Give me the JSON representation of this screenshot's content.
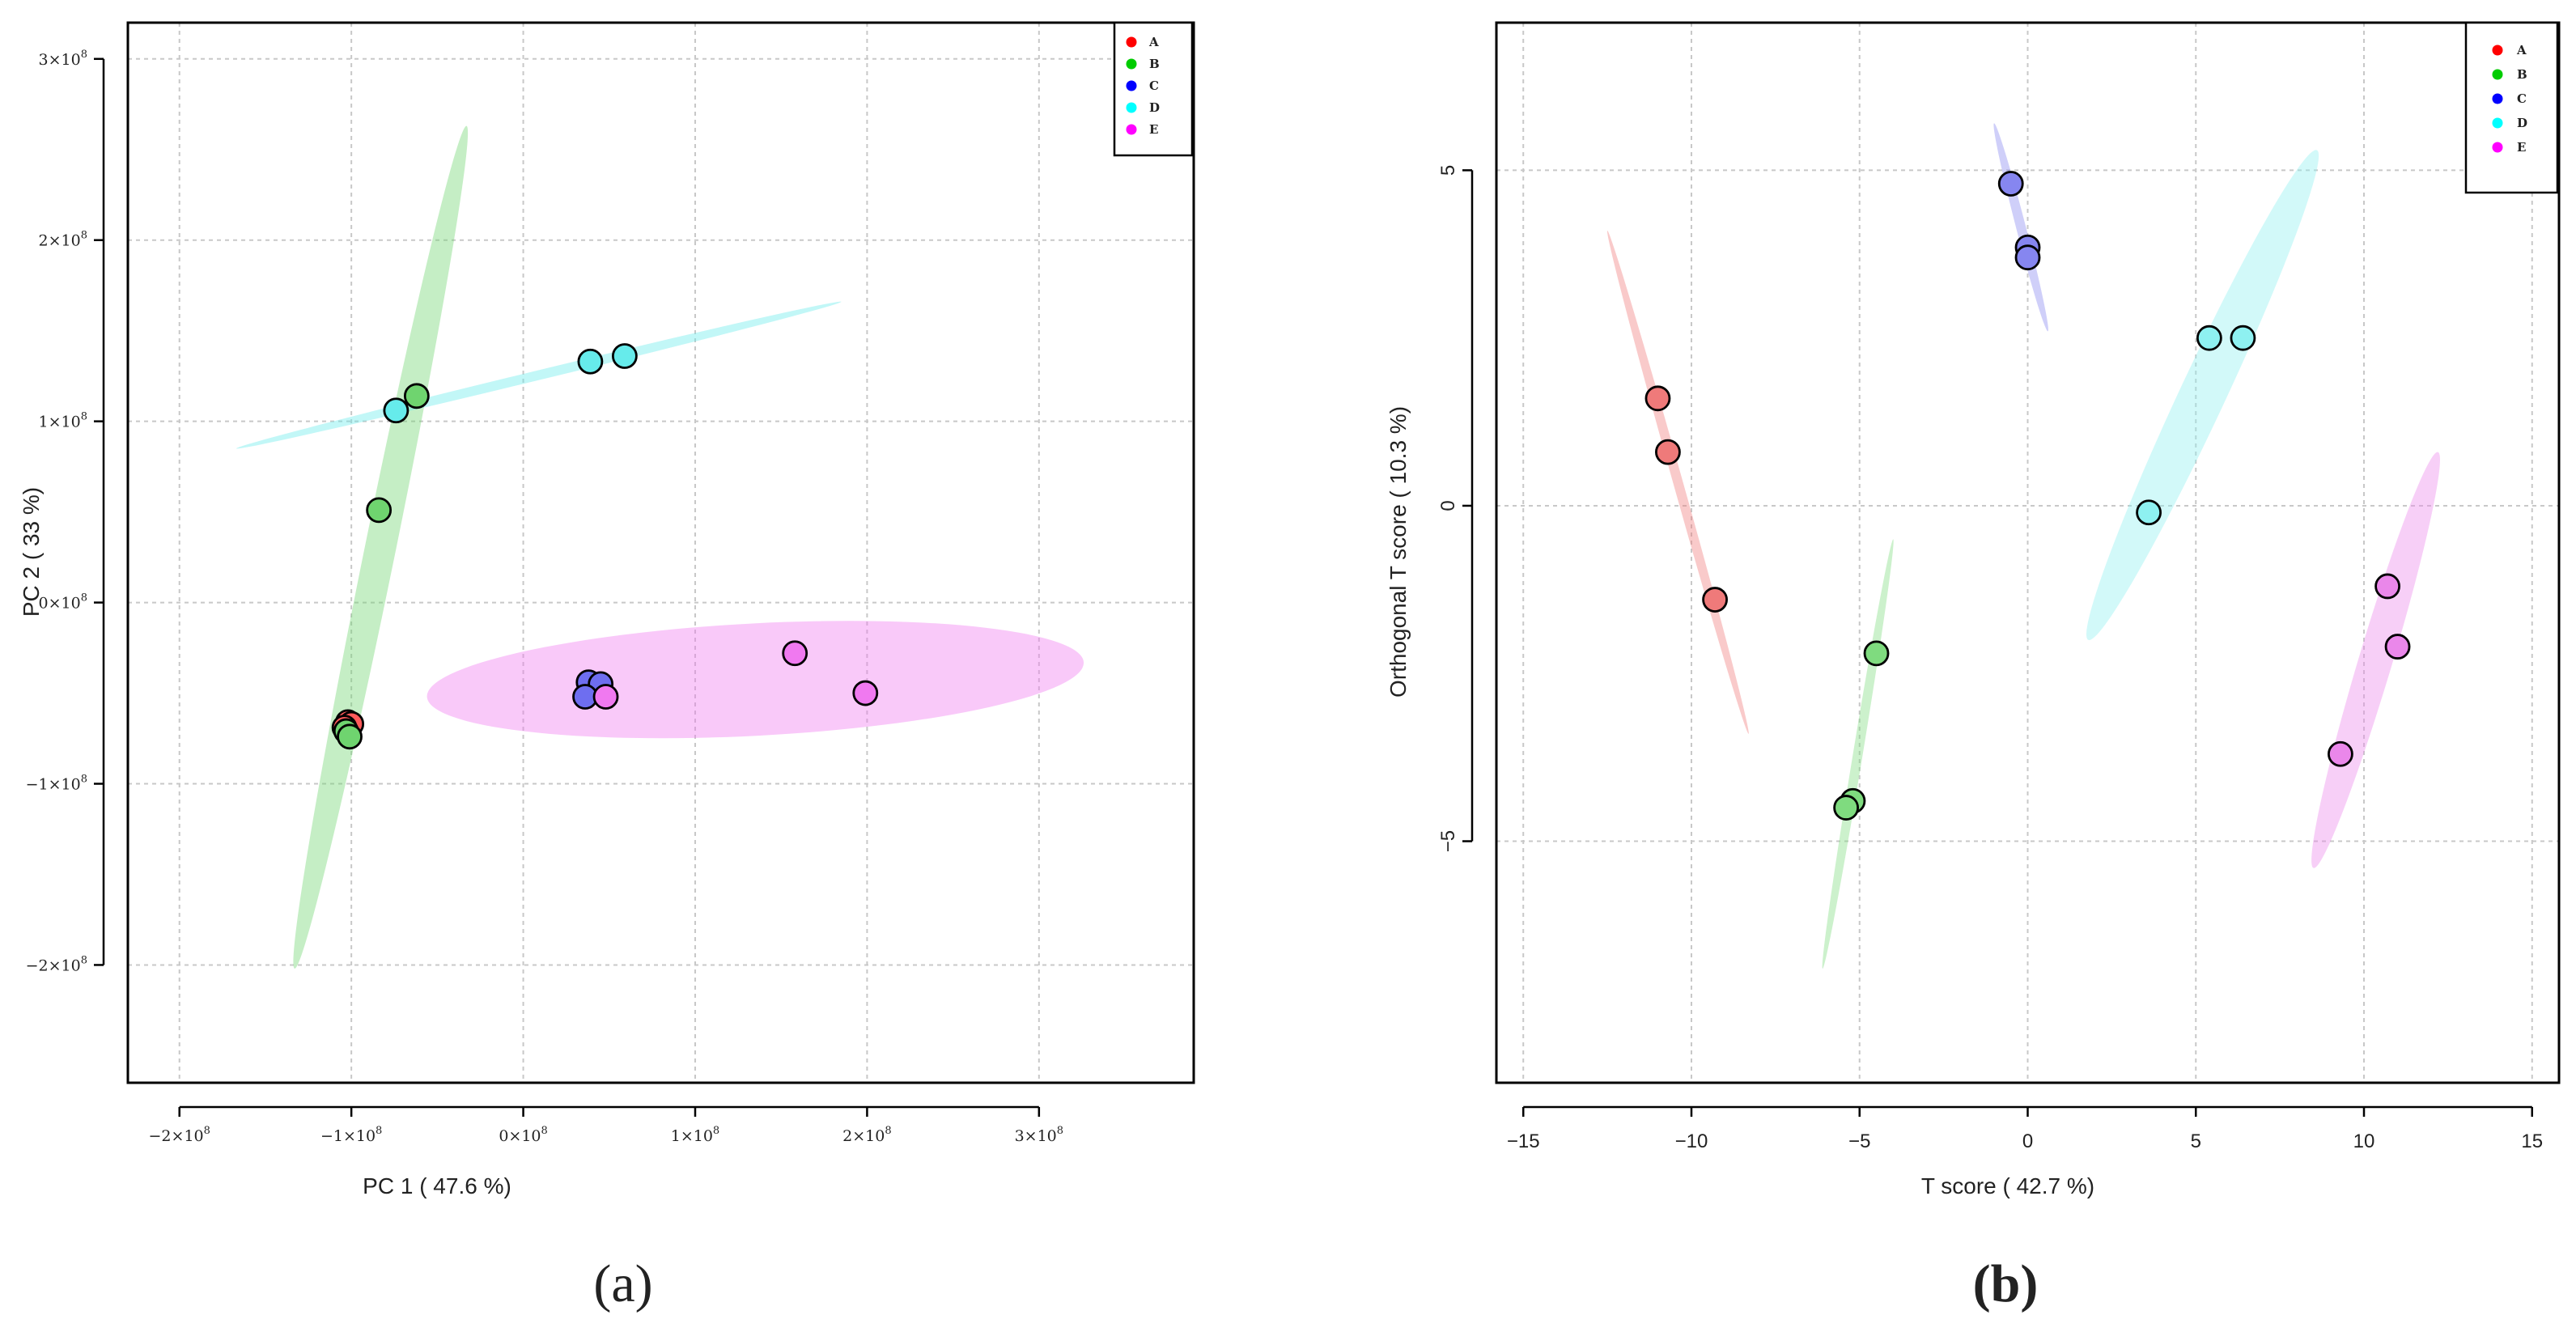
{
  "chart_data": [
    {
      "panel_label": "(a)",
      "type": "scatter",
      "title": "",
      "xlabel": "PC 1 ( 47.6 %)",
      "ylabel": "PC 2 ( 33 %)",
      "xlim": [
        -230000000,
        390000000
      ],
      "ylim": [
        -265000000,
        320000000
      ],
      "xticks": [
        {
          "value": -200000000,
          "mantissa": "−2",
          "exp": "8"
        },
        {
          "value": -100000000,
          "mantissa": "−1",
          "exp": "8"
        },
        {
          "value": 0,
          "mantissa": "0",
          "exp": "8"
        },
        {
          "value": 100000000,
          "mantissa": "1",
          "exp": "8"
        },
        {
          "value": 200000000,
          "mantissa": "2",
          "exp": "8"
        },
        {
          "value": 300000000,
          "mantissa": "3",
          "exp": "8"
        }
      ],
      "yticks": [
        {
          "value": -200000000,
          "mantissa": "−2",
          "exp": "8"
        },
        {
          "value": -100000000,
          "mantissa": "−1",
          "exp": "8"
        },
        {
          "value": 0,
          "mantissa": "0",
          "exp": "8"
        },
        {
          "value": 100000000,
          "mantissa": "1",
          "exp": "8"
        },
        {
          "value": 200000000,
          "mantissa": "2",
          "exp": "8"
        },
        {
          "value": 300000000,
          "mantissa": "3",
          "exp": "8"
        }
      ],
      "grid": true,
      "legend": {
        "position": "top-right",
        "entries": [
          {
            "label": "A",
            "color": "#ff0000"
          },
          {
            "label": "B",
            "color": "#00cc00"
          },
          {
            "label": "C",
            "color": "#0000ff"
          },
          {
            "label": "D",
            "color": "#00ffff"
          },
          {
            "label": "E",
            "color": "#ff00ff"
          }
        ]
      },
      "series": [
        {
          "name": "A",
          "color": "#ff4040",
          "fill": "#ff5a5a",
          "points": [
            [
              -102000000,
              -66000000
            ],
            [
              -100000000,
              -67000000
            ],
            [
              -104000000,
              -69000000
            ]
          ],
          "ellipse": null
        },
        {
          "name": "B",
          "color": "#30d030",
          "fill": "#6fd46f",
          "points": [
            [
              -62000000,
              114000000
            ],
            [
              -84000000,
              51000000
            ],
            [
              -103000000,
              -71000000
            ],
            [
              -101000000,
              -74000000
            ]
          ],
          "ellipse": {
            "p1": [
              -133000000,
              -202000000
            ],
            "p2": [
              -33000000,
              263000000
            ],
            "minor": 9000000
          }
        },
        {
          "name": "C",
          "color": "#5a5aff",
          "fill": "#6e6ef0",
          "points": [
            [
              38000000,
              -44000000
            ],
            [
              45000000,
              -45000000
            ],
            [
              36000000,
              -52000000
            ]
          ],
          "ellipse": null
        },
        {
          "name": "D",
          "color": "#33e5e5",
          "fill": "#66ebeb",
          "points": [
            [
              39000000,
              133000000
            ],
            [
              59000000,
              136000000
            ],
            [
              -74000000,
              106000000
            ]
          ],
          "ellipse": {
            "p1": [
              -167000000,
              85000000
            ],
            "p2": [
              185000000,
              166000000
            ],
            "minor": 1500000
          }
        },
        {
          "name": "E",
          "color": "#ff40ff",
          "fill": "#f079f0",
          "points": [
            [
              158000000,
              -28000000
            ],
            [
              199000000,
              -50000000
            ],
            [
              48000000,
              -52000000
            ]
          ],
          "ellipse": {
            "p1": [
              -56000000,
              -52000000
            ],
            "p2": [
              326000000,
              -33000000
            ],
            "minor": 31000000
          }
        }
      ]
    },
    {
      "panel_label": "(b)",
      "type": "scatter",
      "title": "",
      "xlabel": "T score ( 42.7 %)",
      "ylabel": "Orthogonal T score  ( 10.3 %)",
      "xlim": [
        -15.8,
        15.8
      ],
      "ylim": [
        -8.6,
        7.2
      ],
      "xticks": [
        -15,
        -10,
        -5,
        0,
        5,
        10,
        15
      ],
      "yticks": [
        -5,
        0,
        5
      ],
      "grid": true,
      "legend": {
        "position": "top-right",
        "entries": [
          {
            "label": "A",
            "color": "#ff0000"
          },
          {
            "label": "B",
            "color": "#00cc00"
          },
          {
            "label": "C",
            "color": "#0000ff"
          },
          {
            "label": "D",
            "color": "#00ffff"
          },
          {
            "label": "E",
            "color": "#ff00ff"
          }
        ]
      },
      "series": [
        {
          "name": "A",
          "color": "#ff4040",
          "fill": "#ef7a7a",
          "points": [
            [
              -11.0,
              1.6
            ],
            [
              -10.7,
              0.8
            ],
            [
              -9.3,
              -1.4
            ]
          ],
          "ellipse": {
            "p1": [
              -12.5,
              4.1
            ],
            "p2": [
              -8.3,
              -3.4
            ],
            "minor": 0.12
          }
        },
        {
          "name": "B",
          "color": "#30d030",
          "fill": "#7fdb7f",
          "points": [
            [
              -4.5,
              -2.2
            ],
            [
              -5.2,
              -4.4
            ],
            [
              -5.4,
              -4.5
            ]
          ],
          "ellipse": {
            "p1": [
              -6.1,
              -6.9
            ],
            "p2": [
              -4.0,
              -0.5
            ],
            "minor": 0.08
          }
        },
        {
          "name": "C",
          "color": "#5a5aff",
          "fill": "#8686f0",
          "points": [
            [
              -0.5,
              4.8
            ],
            [
              0.0,
              3.85
            ],
            [
              0.0,
              3.7
            ]
          ],
          "ellipse": {
            "p1": [
              -1.0,
              5.7
            ],
            "p2": [
              0.6,
              2.6
            ],
            "minor": 0.06
          }
        },
        {
          "name": "D",
          "color": "#33e5e5",
          "fill": "#8ef1f1",
          "points": [
            [
              5.4,
              2.5
            ],
            [
              6.4,
              2.5
            ],
            [
              3.6,
              -0.1
            ]
          ],
          "ellipse": {
            "p1": [
              1.8,
              -2.0
            ],
            "p2": [
              8.6,
              5.3
            ],
            "minor": 0.55
          }
        },
        {
          "name": "E",
          "color": "#ff40ff",
          "fill": "#ea87ea",
          "points": [
            [
              10.7,
              -1.2
            ],
            [
              11.0,
              -2.1
            ],
            [
              9.3,
              -3.7
            ]
          ],
          "ellipse": {
            "p1": [
              8.5,
              -5.4
            ],
            "p2": [
              12.2,
              0.8
            ],
            "minor": 0.45
          }
        }
      ]
    }
  ]
}
